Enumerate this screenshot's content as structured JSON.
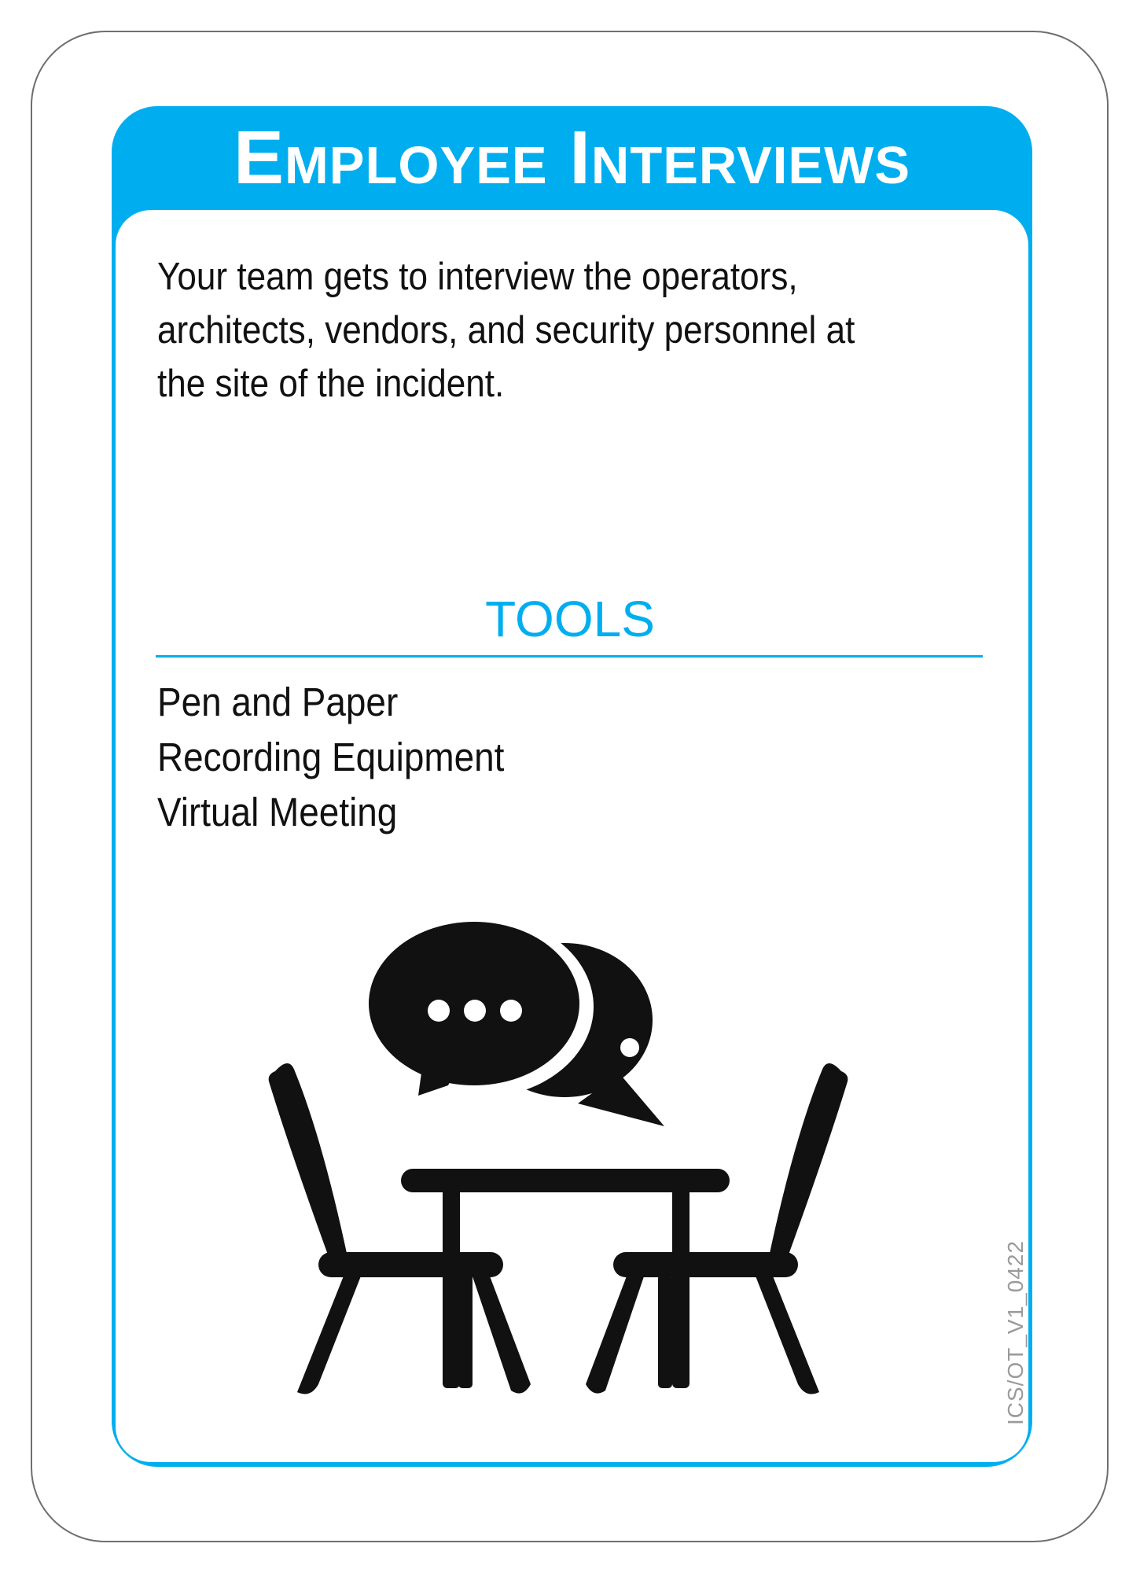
{
  "card": {
    "title": "Employee Interviews",
    "description": "Your team gets to interview the operators, architects, vendors, and security personnel at the site of the incident.",
    "tools_heading": "TOOLS",
    "tools": [
      "Pen and Paper",
      "Recording Equipment",
      "Virtual Meeting"
    ],
    "illustration_icon": "interview-table-chat-icon",
    "version_code": "ICS/OT_V1_0422"
  },
  "colors": {
    "accent": "#00aeef",
    "text": "#111111",
    "icon": "#111111",
    "outline": "#6e6e6e",
    "version_text": "#9a9a9a"
  }
}
